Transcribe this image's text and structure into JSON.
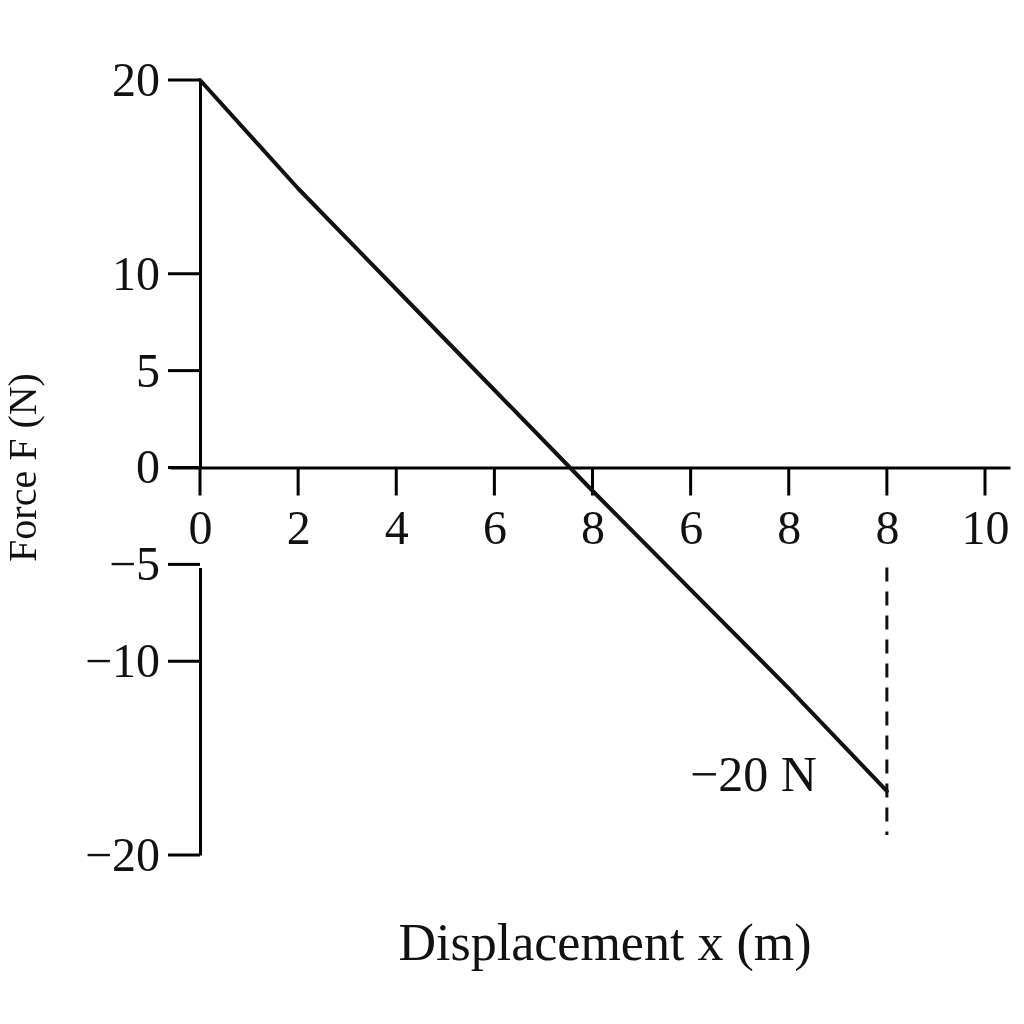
{
  "chart_data": {
    "type": "line",
    "xlabel": "Displacement x (m)",
    "ylabel": "Force F (N)",
    "categories": [
      "0",
      "2",
      "4",
      "6",
      "8",
      "6",
      "8",
      "8",
      "10"
    ],
    "ylim": [
      -20,
      20
    ],
    "yticks": [
      20,
      10,
      5,
      0,
      -5,
      -10,
      -20
    ],
    "series": [
      {
        "color": "#111111",
        "values": [
          20,
          14.4,
          9.2,
          4.0,
          -1.2,
          -6.3,
          -11.4,
          -16.7,
          null
        ]
      }
    ],
    "annotations": [
      "−20 N"
    ]
  }
}
